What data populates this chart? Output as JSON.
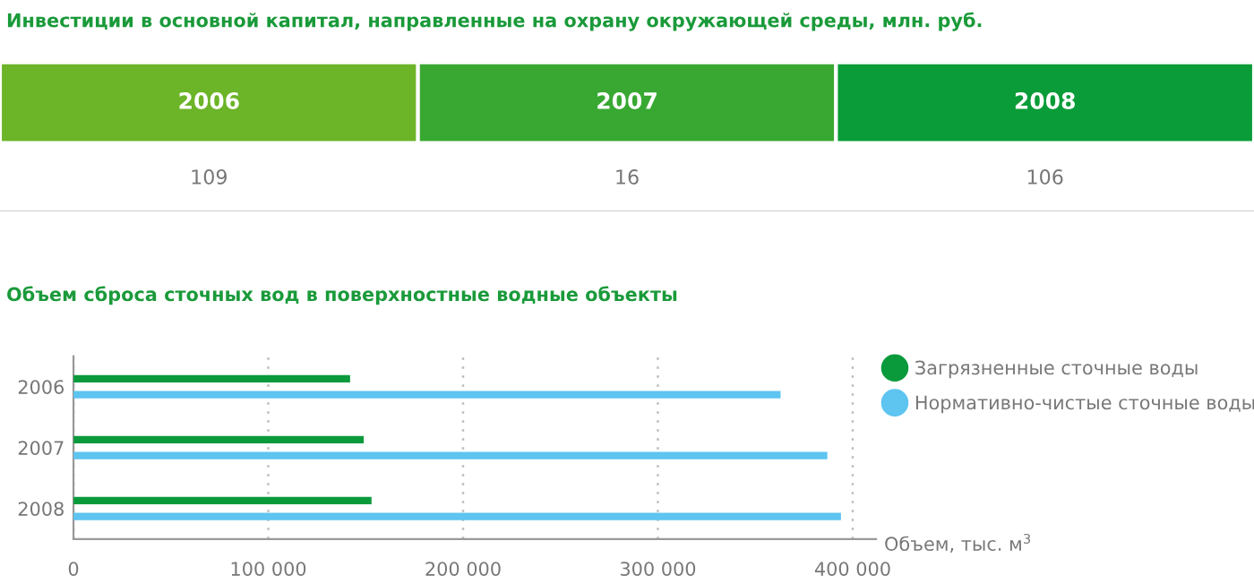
{
  "chart_data": [
    {
      "type": "other",
      "title": "Инвестиции в основной капитал, направленные на охрану окружающей среды, млн. руб.",
      "categories": [
        "2006",
        "2007",
        "2008"
      ],
      "values": [
        109,
        16,
        106
      ],
      "colors": [
        "#6cb428",
        "#38a832",
        "#0a9c38"
      ],
      "data_labels": true
    },
    {
      "type": "bar",
      "orientation": "horizontal",
      "title": "Объем сброса сточных вод в поверхностные водные объекты",
      "xlabel": "Объем, тыс. м$^{3}$",
      "categories": [
        "2006",
        "2007",
        "2008"
      ],
      "series": [
        {
          "name": "Загрязненные сточные воды",
          "color": "#0a9a3c",
          "values": [
            142000,
            149000,
            153000
          ]
        },
        {
          "name": "Нормативно-чистые сточные воды",
          "color": "#5ec4f0",
          "values": [
            363000,
            387000,
            394000
          ]
        }
      ],
      "xlim": [
        0,
        412000
      ],
      "xticks": [
        {
          "value": 0,
          "label": "0"
        },
        {
          "value": 100000,
          "label": "100 000"
        },
        {
          "value": 200000,
          "label": "200 000"
        },
        {
          "value": 300000,
          "label": "300 000"
        },
        {
          "value": 400000,
          "label": "400 000"
        }
      ],
      "grid": "x",
      "legend": "right",
      "marker": "circle"
    }
  ]
}
